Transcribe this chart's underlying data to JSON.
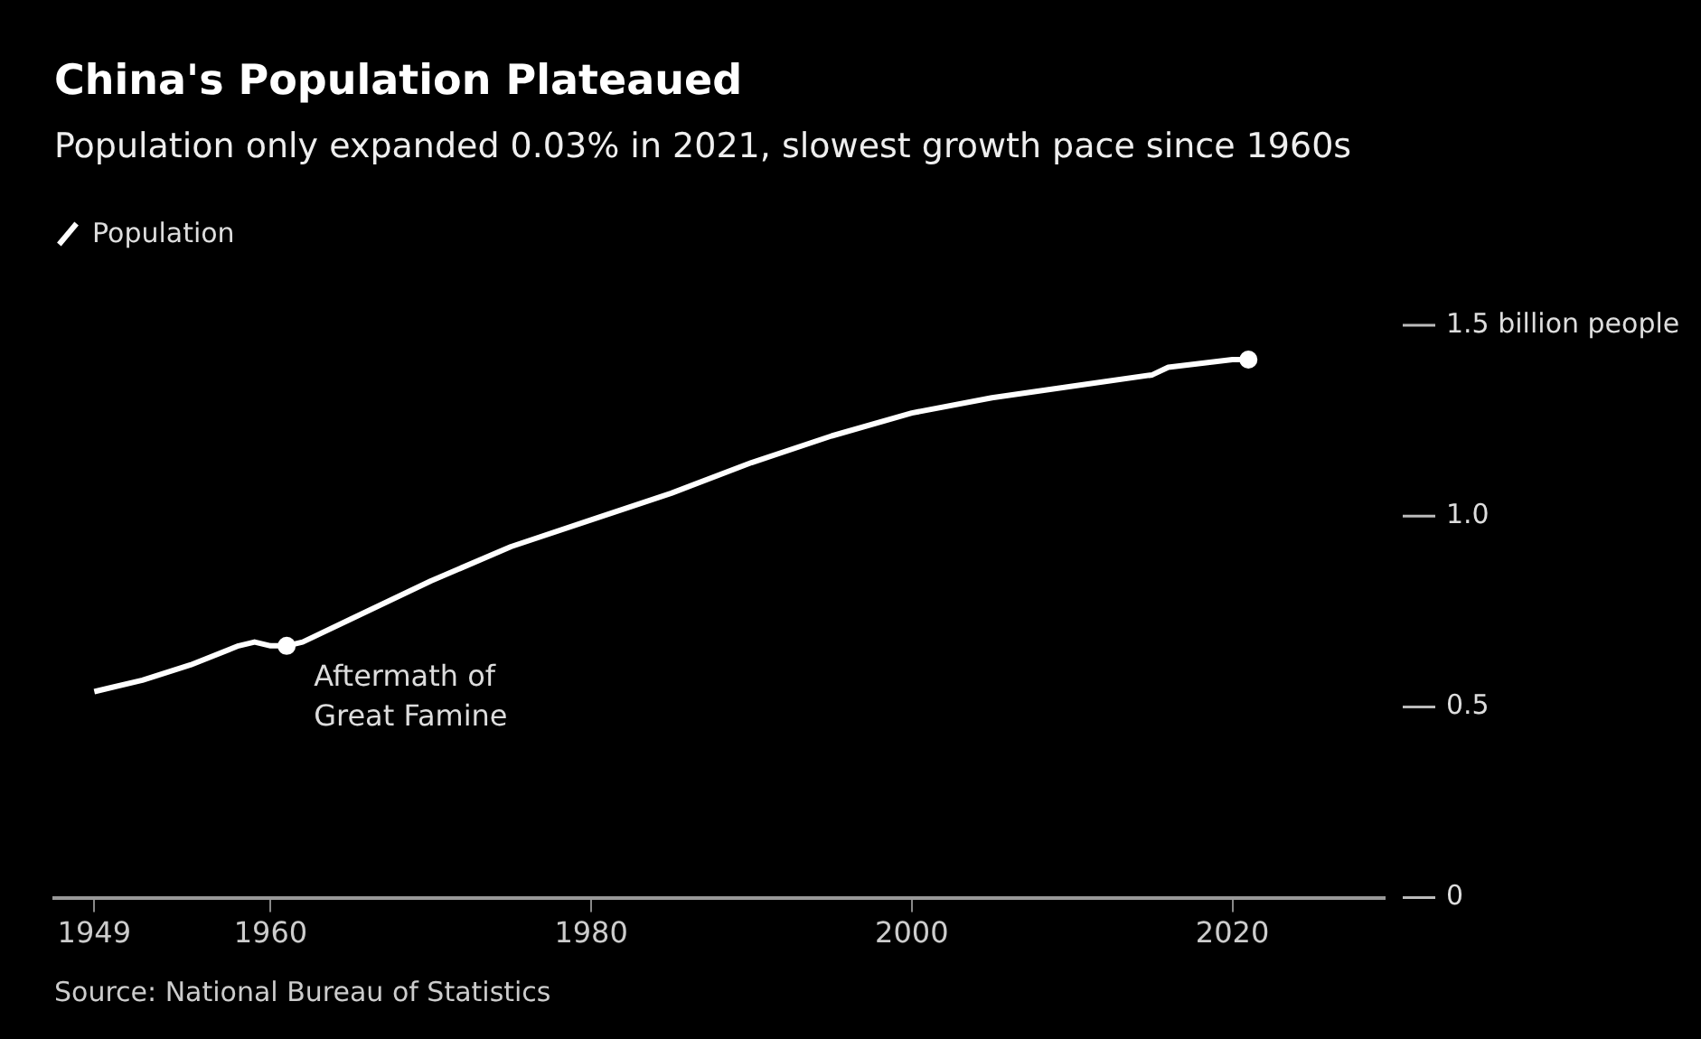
{
  "chart_data": {
    "type": "line",
    "title": "China's Population Plateaued",
    "subtitle": "Population only expanded 0.03% in 2021, slowest growth pace since 1960s",
    "x": [
      1949,
      1950,
      1952,
      1955,
      1958,
      1959,
      1960,
      1961,
      1962,
      1965,
      1970,
      1975,
      1980,
      1985,
      1990,
      1995,
      2000,
      2005,
      2010,
      2015,
      2016,
      2018,
      2020,
      2021
    ],
    "series": [
      {
        "name": "Population",
        "color": "#ffffff",
        "values": [
          0.54,
          0.55,
          0.57,
          0.61,
          0.66,
          0.67,
          0.66,
          0.66,
          0.67,
          0.73,
          0.83,
          0.92,
          0.99,
          1.06,
          1.14,
          1.21,
          1.27,
          1.31,
          1.34,
          1.37,
          1.39,
          1.4,
          1.41,
          1.41
        ]
      },
      {
        "type": "scatter",
        "color": "#ffffff",
        "x": [
          1961,
          2021
        ],
        "values": [
          0.66,
          1.41
        ]
      }
    ],
    "xlim": [
      1946.5,
      2029.5
    ],
    "xticks": [
      1949,
      1960,
      1980,
      2000,
      2020
    ],
    "ylim": [
      0,
      1.5
    ],
    "yticks": [
      0,
      0.5,
      {
        "value": 1,
        "label": "1.0"
      },
      {
        "value": 1.5,
        "label": "1.5 billion people"
      }
    ],
    "grid": false,
    "legend": "top left",
    "annotations": [
      {
        "text": "Aftermath of Great Famine",
        "x": 1961,
        "y": 0.66
      },
      "Source: National Bureau of Statistics"
    ]
  }
}
